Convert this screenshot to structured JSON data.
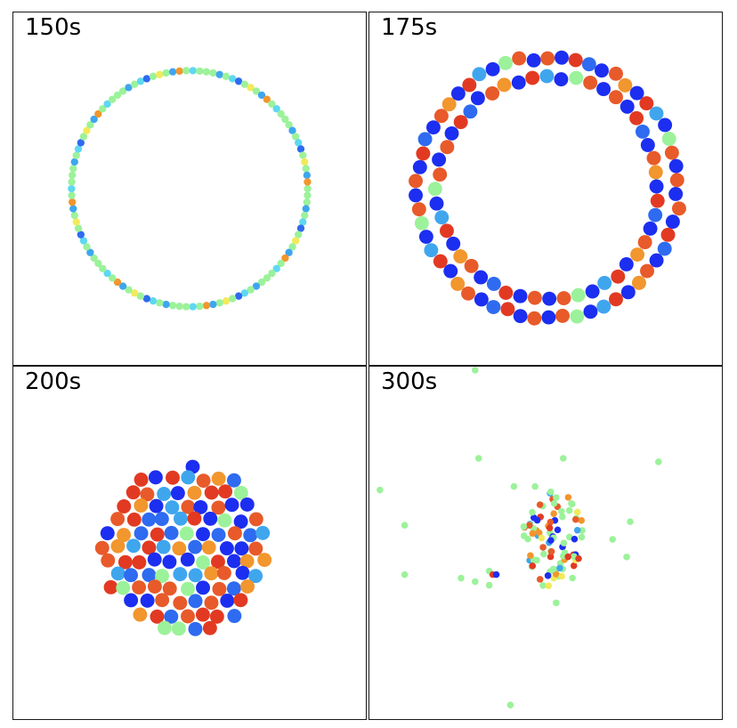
{
  "colors": {
    "blue": "#1c2ef0",
    "mid_blue": "#2e6bf0",
    "light_blue": "#3fa6ee",
    "cyan": "#5fd8f2",
    "green": "#9cf29a",
    "yellow": "#f2ea5a",
    "orange": "#f2962e",
    "red_orange": "#e85a2a",
    "red": "#e23a22"
  },
  "chart_data": [
    {
      "type": "scatter",
      "title": "150s",
      "style": "ring",
      "ring": {
        "cx": 0.5,
        "cy": 0.5,
        "r": 0.335,
        "count": 110,
        "palette": [
          "green",
          "green",
          "green",
          "light_blue",
          "green",
          "cyan",
          "mid_blue",
          "green",
          "yellow",
          "green",
          "light_blue",
          "orange",
          "green",
          "cyan"
        ]
      }
    },
    {
      "type": "scatter",
      "title": "175s",
      "style": "double-ring",
      "ring": {
        "cx": 0.507,
        "cy": 0.497,
        "r_outer": 0.37,
        "r_inner": 0.315,
        "count_outer": 58,
        "count_inner": 48,
        "palette": [
          "blue",
          "red_orange",
          "blue",
          "red",
          "mid_blue",
          "blue",
          "red_orange",
          "orange",
          "blue",
          "red",
          "light_blue",
          "blue",
          "green",
          "red_orange"
        ]
      }
    },
    {
      "type": "scatter",
      "title": "200s",
      "style": "cluster",
      "cluster": {
        "cx": 0.49,
        "cy": 0.52,
        "rx": 0.24,
        "ry": 0.24,
        "count": 140,
        "palette": [
          "red_orange",
          "blue",
          "red",
          "orange",
          "blue",
          "mid_blue",
          "red_orange",
          "green",
          "blue",
          "red",
          "orange",
          "mid_blue",
          "light_blue",
          "red_orange"
        ]
      }
    },
    {
      "type": "scatter",
      "title": "300s",
      "style": "scatter",
      "points": [
        [
          0.3,
          0.01,
          "green"
        ],
        [
          0.31,
          0.26,
          "green"
        ],
        [
          0.55,
          0.26,
          "green"
        ],
        [
          0.82,
          0.27,
          "green"
        ],
        [
          0.03,
          0.35,
          "green"
        ],
        [
          0.41,
          0.34,
          "green"
        ],
        [
          0.47,
          0.34,
          "green"
        ],
        [
          0.1,
          0.45,
          "green"
        ],
        [
          0.74,
          0.44,
          "green"
        ],
        [
          0.69,
          0.49,
          "green"
        ],
        [
          0.73,
          0.54,
          "green"
        ],
        [
          0.1,
          0.59,
          "green"
        ],
        [
          0.3,
          0.61,
          "green"
        ],
        [
          0.34,
          0.62,
          "green"
        ],
        [
          0.53,
          0.67,
          "green"
        ],
        [
          0.4,
          0.96,
          "green"
        ],
        [
          0.34,
          0.58,
          "green"
        ],
        [
          0.35,
          0.59,
          "red"
        ],
        [
          0.36,
          0.59,
          "blue"
        ],
        [
          0.26,
          0.6,
          "green"
        ]
      ],
      "cluster": {
        "cx": 0.52,
        "cy": 0.5,
        "rx": 0.09,
        "ry": 0.15,
        "count": 90,
        "palette": [
          "green",
          "green",
          "green",
          "blue",
          "red",
          "yellow",
          "light_blue",
          "orange",
          "green",
          "blue",
          "red_orange",
          "green"
        ]
      }
    }
  ]
}
